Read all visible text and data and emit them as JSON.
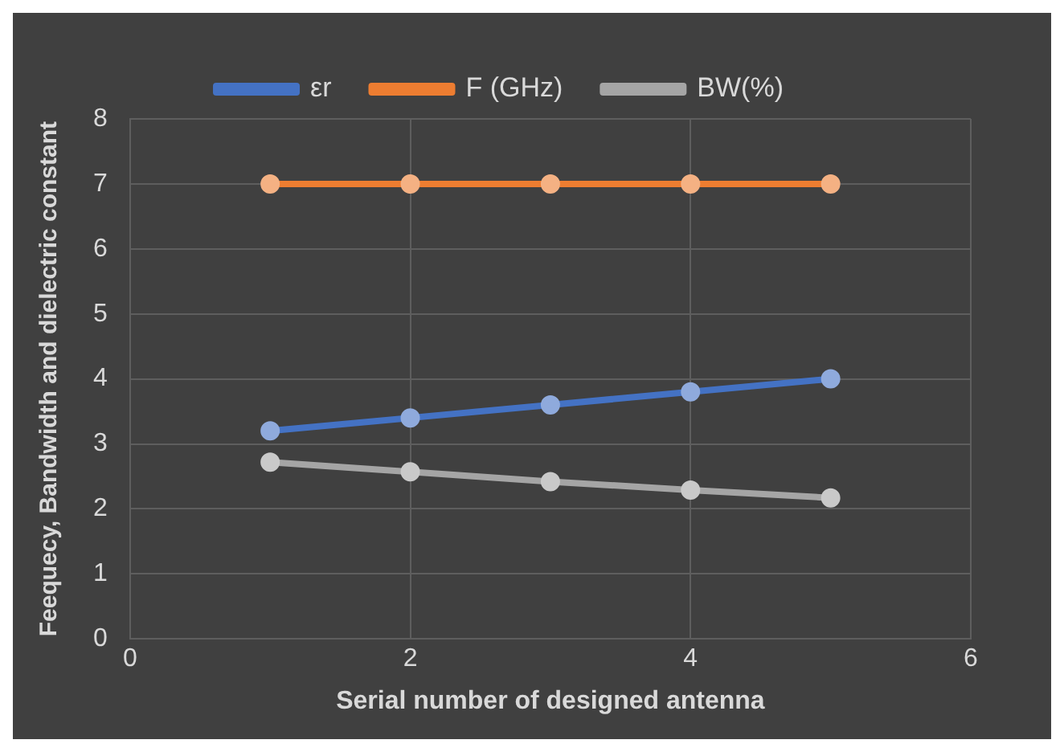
{
  "chart_data": {
    "type": "line",
    "xlabel": "Serial number of designed antenna",
    "ylabel": "Feequecy, Bandwidth and dielectric constant",
    "x": [
      1,
      2,
      3,
      4,
      5
    ],
    "series": [
      {
        "name": "εr",
        "color": "#4472c4",
        "values": [
          3.2,
          3.4,
          3.6,
          3.8,
          4.0
        ]
      },
      {
        "name": "F (GHz)",
        "color": "#ed7d31",
        "values": [
          7,
          7,
          7,
          7,
          7
        ]
      },
      {
        "name": "BW(%)",
        "color": "#a5a5a5",
        "values": [
          2.72,
          2.57,
          2.42,
          2.29,
          2.17
        ]
      }
    ],
    "xlim": [
      0,
      6
    ],
    "xticks": [
      0,
      2,
      4,
      6
    ],
    "ylim": [
      0,
      8
    ],
    "yticks": [
      0,
      1,
      2,
      3,
      4,
      5,
      6,
      7,
      8
    ],
    "grid": true,
    "legend": "top",
    "marker": "circle",
    "line_style": "solid"
  }
}
